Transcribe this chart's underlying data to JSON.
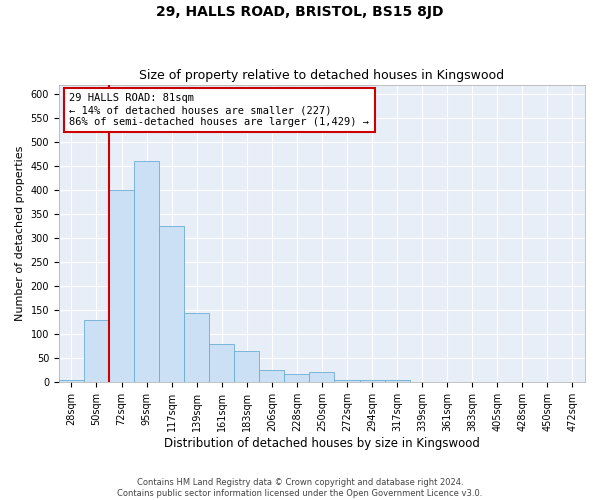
{
  "title": "29, HALLS ROAD, BRISTOL, BS15 8JD",
  "subtitle": "Size of property relative to detached houses in Kingswood",
  "xlabel": "Distribution of detached houses by size in Kingswood",
  "ylabel": "Number of detached properties",
  "categories": [
    "28sqm",
    "50sqm",
    "72sqm",
    "95sqm",
    "117sqm",
    "139sqm",
    "161sqm",
    "183sqm",
    "206sqm",
    "228sqm",
    "250sqm",
    "272sqm",
    "294sqm",
    "317sqm",
    "339sqm",
    "361sqm",
    "383sqm",
    "405sqm",
    "428sqm",
    "450sqm",
    "472sqm"
  ],
  "bar_heights": [
    5,
    130,
    400,
    460,
    325,
    145,
    80,
    65,
    25,
    18,
    22,
    5,
    5,
    5,
    1,
    0,
    1,
    0,
    0,
    0,
    1
  ],
  "bar_color": "#cce0f5",
  "bar_edge_color": "#6aaed6",
  "red_line_color": "#cc0000",
  "red_line_index": 2,
  "annotation_text_line1": "29 HALLS ROAD: 81sqm",
  "annotation_text_line2": "← 14% of detached houses are smaller (227)",
  "annotation_text_line3": "86% of semi-detached houses are larger (1,429) →",
  "ylim": [
    0,
    620
  ],
  "yticks": [
    0,
    50,
    100,
    150,
    200,
    250,
    300,
    350,
    400,
    450,
    500,
    550,
    600
  ],
  "fig_bg_color": "#ffffff",
  "plot_bg_color": "#e8eef8",
  "footer": "Contains HM Land Registry data © Crown copyright and database right 2024.\nContains public sector information licensed under the Open Government Licence v3.0.",
  "title_fontsize": 10,
  "subtitle_fontsize": 9,
  "ylabel_fontsize": 8,
  "xlabel_fontsize": 8.5,
  "tick_fontsize": 7,
  "footer_fontsize": 6,
  "annot_fontsize": 7.5
}
